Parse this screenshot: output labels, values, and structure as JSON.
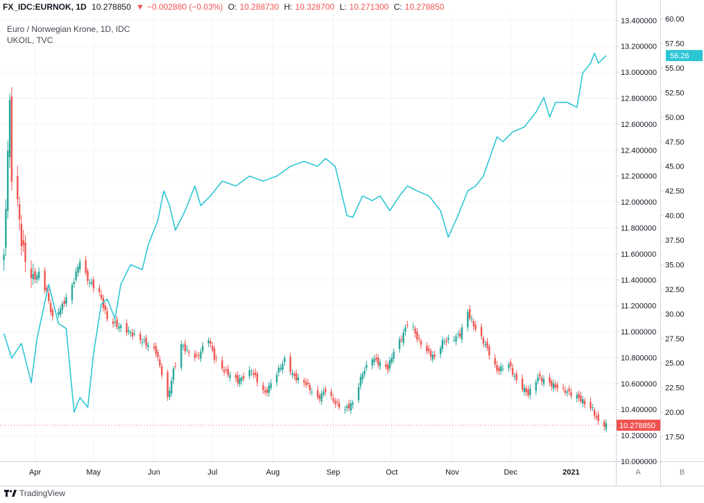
{
  "header": {
    "symbol": "FX_IDC:EURNOK, 1D",
    "last": "10.278850",
    "change": "−0.002880 (−0.03%)",
    "open_label": "O:",
    "open": "10.288730",
    "high_label": "H:",
    "high": "10.328700",
    "low_label": "L:",
    "low": "10.271300",
    "close_label": "C:",
    "close": "10.278850"
  },
  "overlay": {
    "main_title": "Euro / Norwegian Krone, 1D, IDC",
    "compare_title": "UKOIL, TVC"
  },
  "brand": {
    "name": "TradingView"
  },
  "colors": {
    "up": "#26a69a",
    "down": "#ef5350",
    "oil_line": "#2cc6d4",
    "grid": "#f0f3fa",
    "axis_text": "#131722",
    "price_tag": "#ef5350",
    "oil_tag": "#2cc6d4"
  },
  "chart_data": {
    "type": "line",
    "x_tick_labels": [
      "Apr",
      "May",
      "Jun",
      "Jul",
      "Aug",
      "Sep",
      "Oct",
      "Nov",
      "Dec",
      "2021"
    ],
    "left_axis": {
      "name": "EURNOK",
      "ylim": [
        10.0,
        13.45
      ],
      "tick_labels": [
        "13.400000",
        "13.200000",
        "13.000000",
        "12.800000",
        "12.600000",
        "12.400000",
        "12.200000",
        "12.000000",
        "11.800000",
        "11.600000",
        "11.400000",
        "11.200000",
        "11.000000",
        "10.800000",
        "10.600000",
        "10.400000",
        "10.200000",
        "10.000000"
      ],
      "last_value_label": "10.278850",
      "scale_button": "A"
    },
    "right_axis": {
      "name": "UKOIL",
      "ylim": [
        15.0,
        60.5
      ],
      "tick_labels": [
        "60.00",
        "57.50",
        "55.00",
        "52.50",
        "50.00",
        "47.50",
        "45.00",
        "42.50",
        "40.00",
        "37.50",
        "35.00",
        "32.50",
        "30.00",
        "27.50",
        "25.00",
        "22.50",
        "20.00",
        "17.50"
      ],
      "last_value_label": "56.26",
      "scale_button": "B"
    },
    "series": [
      {
        "name": "Euro / Norwegian Krone, 1D, IDC",
        "kind": "candlestick",
        "close_points": [
          [
            "2020-03-16",
            11.55
          ],
          [
            "2020-03-18",
            12.4
          ],
          [
            "2020-03-19",
            12.75
          ],
          [
            "2020-03-20",
            12.2
          ],
          [
            "2020-03-23",
            12.0
          ],
          [
            "2020-03-25",
            11.7
          ],
          [
            "2020-03-27",
            11.55
          ],
          [
            "2020-03-31",
            11.4
          ],
          [
            "2020-04-03",
            11.45
          ],
          [
            "2020-04-07",
            11.3
          ],
          [
            "2020-04-10",
            11.1
          ],
          [
            "2020-04-15",
            11.2
          ],
          [
            "2020-04-20",
            11.35
          ],
          [
            "2020-04-24",
            11.55
          ],
          [
            "2020-04-28",
            11.4
          ],
          [
            "2020-05-04",
            11.3
          ],
          [
            "2020-05-08",
            11.1
          ],
          [
            "2020-05-13",
            11.05
          ],
          [
            "2020-05-19",
            11.0
          ],
          [
            "2020-05-26",
            10.93
          ],
          [
            "2020-06-02",
            10.85
          ],
          [
            "2020-06-05",
            10.68
          ],
          [
            "2020-06-08",
            10.48
          ],
          [
            "2020-06-11",
            10.7
          ],
          [
            "2020-06-15",
            10.9
          ],
          [
            "2020-06-18",
            10.85
          ],
          [
            "2020-06-23",
            10.8
          ],
          [
            "2020-06-29",
            10.95
          ],
          [
            "2020-07-02",
            10.8
          ],
          [
            "2020-07-07",
            10.7
          ],
          [
            "2020-07-14",
            10.62
          ],
          [
            "2020-07-21",
            10.7
          ],
          [
            "2020-07-28",
            10.52
          ],
          [
            "2020-08-03",
            10.68
          ],
          [
            "2020-08-07",
            10.78
          ],
          [
            "2020-08-12",
            10.65
          ],
          [
            "2020-08-18",
            10.6
          ],
          [
            "2020-08-24",
            10.48
          ],
          [
            "2020-08-28",
            10.55
          ],
          [
            "2020-09-02",
            10.45
          ],
          [
            "2020-09-07",
            10.4
          ],
          [
            "2020-09-11",
            10.45
          ],
          [
            "2020-09-16",
            10.68
          ],
          [
            "2020-09-21",
            10.8
          ],
          [
            "2020-09-25",
            10.75
          ],
          [
            "2020-09-29",
            10.72
          ],
          [
            "2020-10-02",
            10.85
          ],
          [
            "2020-10-06",
            10.95
          ],
          [
            "2020-10-10",
            11.1
          ],
          [
            "2020-10-14",
            10.95
          ],
          [
            "2020-10-19",
            10.85
          ],
          [
            "2020-10-23",
            10.8
          ],
          [
            "2020-10-27",
            10.92
          ],
          [
            "2020-11-02",
            10.95
          ],
          [
            "2020-11-05",
            10.98
          ],
          [
            "2020-11-09",
            11.15
          ],
          [
            "2020-11-12",
            11.05
          ],
          [
            "2020-11-18",
            10.9
          ],
          [
            "2020-11-24",
            10.7
          ],
          [
            "2020-11-30",
            10.75
          ],
          [
            "2020-12-04",
            10.62
          ],
          [
            "2020-12-10",
            10.52
          ],
          [
            "2020-12-15",
            10.65
          ],
          [
            "2020-12-21",
            10.6
          ],
          [
            "2020-12-28",
            10.55
          ],
          [
            "2021-01-04",
            10.5
          ],
          [
            "2021-01-08",
            10.45
          ],
          [
            "2021-01-12",
            10.4
          ],
          [
            "2021-01-15",
            10.3
          ],
          [
            "2021-01-19",
            10.28
          ]
        ]
      },
      {
        "name": "UKOIL, TVC",
        "kind": "line",
        "points": [
          [
            "2020-03-16",
            28.0
          ],
          [
            "2020-03-20",
            25.5
          ],
          [
            "2020-03-25",
            27.0
          ],
          [
            "2020-03-30",
            23.0
          ],
          [
            "2020-04-02",
            27.5
          ],
          [
            "2020-04-08",
            33.0
          ],
          [
            "2020-04-13",
            29.0
          ],
          [
            "2020-04-17",
            28.5
          ],
          [
            "2020-04-21",
            20.0
          ],
          [
            "2020-04-24",
            21.5
          ],
          [
            "2020-04-28",
            20.5
          ],
          [
            "2020-05-01",
            26.0
          ],
          [
            "2020-05-05",
            31.0
          ],
          [
            "2020-05-08",
            31.5
          ],
          [
            "2020-05-12",
            29.5
          ],
          [
            "2020-05-15",
            33.0
          ],
          [
            "2020-05-20",
            35.0
          ],
          [
            "2020-05-26",
            34.5
          ],
          [
            "2020-05-29",
            37.0
          ],
          [
            "2020-06-03",
            39.5
          ],
          [
            "2020-06-06",
            42.5
          ],
          [
            "2020-06-09",
            41.0
          ],
          [
            "2020-06-12",
            38.5
          ],
          [
            "2020-06-17",
            40.5
          ],
          [
            "2020-06-22",
            43.0
          ],
          [
            "2020-06-25",
            41.0
          ],
          [
            "2020-06-30",
            42.0
          ],
          [
            "2020-07-06",
            43.5
          ],
          [
            "2020-07-13",
            43.0
          ],
          [
            "2020-07-20",
            44.0
          ],
          [
            "2020-07-27",
            43.5
          ],
          [
            "2020-08-03",
            44.0
          ],
          [
            "2020-08-10",
            45.0
          ],
          [
            "2020-08-17",
            45.5
          ],
          [
            "2020-08-24",
            45.0
          ],
          [
            "2020-08-28",
            45.8
          ],
          [
            "2020-09-02",
            45.0
          ],
          [
            "2020-09-08",
            40.0
          ],
          [
            "2020-09-11",
            39.8
          ],
          [
            "2020-09-16",
            42.0
          ],
          [
            "2020-09-21",
            41.5
          ],
          [
            "2020-09-25",
            42.0
          ],
          [
            "2020-09-30",
            40.5
          ],
          [
            "2020-10-05",
            42.0
          ],
          [
            "2020-10-09",
            43.0
          ],
          [
            "2020-10-14",
            42.5
          ],
          [
            "2020-10-20",
            42.0
          ],
          [
            "2020-10-26",
            40.5
          ],
          [
            "2020-10-30",
            37.8
          ],
          [
            "2020-11-04",
            40.0
          ],
          [
            "2020-11-09",
            42.5
          ],
          [
            "2020-11-13",
            43.0
          ],
          [
            "2020-11-17",
            44.0
          ],
          [
            "2020-11-24",
            48.0
          ],
          [
            "2020-11-27",
            47.5
          ],
          [
            "2020-12-02",
            48.5
          ],
          [
            "2020-12-08",
            49.0
          ],
          [
            "2020-12-14",
            50.5
          ],
          [
            "2020-12-18",
            52.0
          ],
          [
            "2020-12-21",
            50.0
          ],
          [
            "2020-12-24",
            51.5
          ],
          [
            "2020-12-30",
            51.5
          ],
          [
            "2021-01-04",
            51.0
          ],
          [
            "2021-01-07",
            54.5
          ],
          [
            "2021-01-11",
            55.5
          ],
          [
            "2021-01-13",
            56.5
          ],
          [
            "2021-01-15",
            55.5
          ],
          [
            "2021-01-19",
            56.26
          ]
        ]
      }
    ]
  }
}
